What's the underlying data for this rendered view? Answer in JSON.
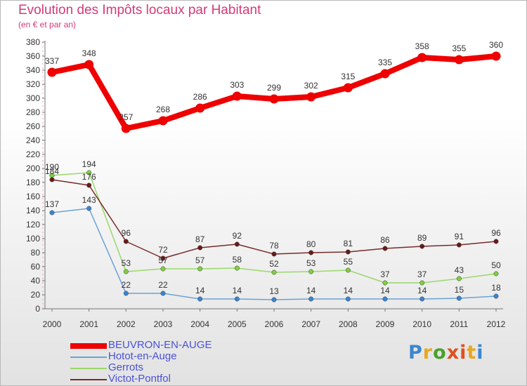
{
  "title": "Evolution des Impôts locaux par Habitant",
  "subtitle": "(en € et par an)",
  "logo": {
    "text": "Proxiti",
    "colors": [
      "#3a86d0",
      "#e8a820",
      "#4aa02c",
      "#e05020",
      "#e05020",
      "#e8a820",
      "#3a86d0"
    ]
  },
  "chart_data": {
    "type": "line",
    "title": "Evolution des Impôts locaux par Habitant",
    "subtitle": "(en € et par an)",
    "xlabel": "",
    "ylabel": "",
    "ylim": [
      0,
      380
    ],
    "yticks": [
      0,
      20,
      40,
      60,
      80,
      100,
      120,
      140,
      160,
      180,
      200,
      220,
      240,
      260,
      280,
      300,
      320,
      340,
      360,
      380
    ],
    "grid": false,
    "legend_position": "bottom-left",
    "x": [
      "2000",
      "2001",
      "2002",
      "2003",
      "2004",
      "2005",
      "2006",
      "2007",
      "2008",
      "2009",
      "2010",
      "2011",
      "2012"
    ],
    "series": [
      {
        "name": "BEUVRON-EN-AUGE",
        "color": "#ee0000",
        "marker_color": "#ee0000",
        "values": [
          337,
          348,
          257,
          268,
          286,
          303,
          299,
          302,
          315,
          335,
          358,
          355,
          360
        ]
      },
      {
        "name": "Hotot-en-Auge",
        "color": "#6aa2d6",
        "marker_color": "#3a86d0",
        "values": [
          137,
          143,
          22,
          22,
          14,
          14,
          13,
          14,
          14,
          14,
          14,
          15,
          18
        ]
      },
      {
        "name": "Gerrots",
        "color": "#9ad86a",
        "marker_color": "#80d040",
        "values": [
          190,
          194,
          53,
          57,
          57,
          58,
          52,
          53,
          55,
          37,
          37,
          43,
          50
        ]
      },
      {
        "name": "Victot-Pontfol",
        "color": "#7a2a2a",
        "marker_color": "#6a1a1a",
        "values": [
          184,
          176,
          96,
          72,
          87,
          92,
          78,
          80,
          81,
          86,
          89,
          91,
          96
        ]
      }
    ]
  }
}
